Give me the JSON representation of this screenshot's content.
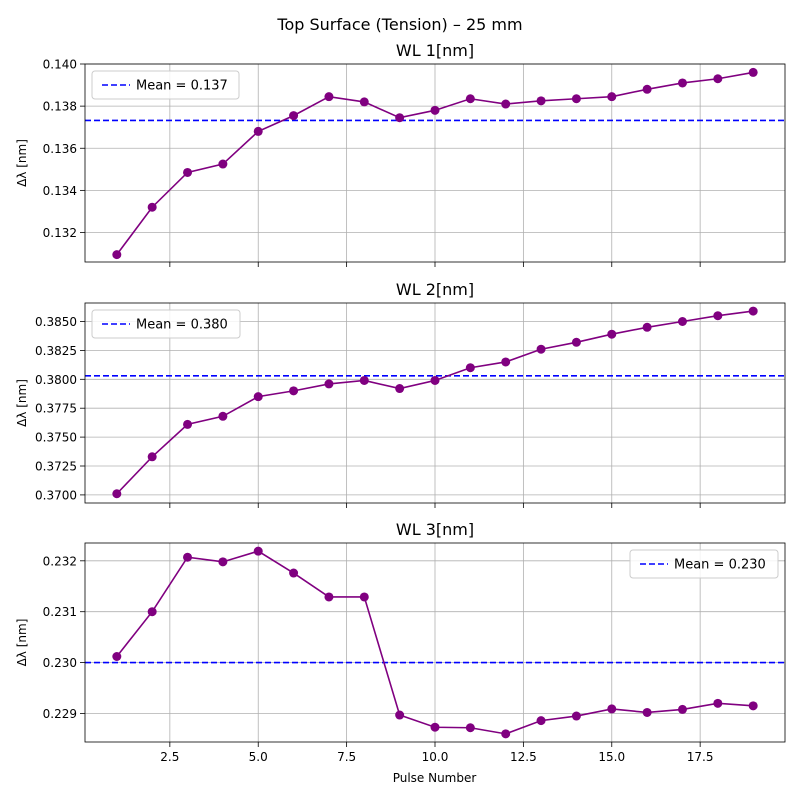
{
  "figure": {
    "suptitle": "Top Surface (Tension) – 25 mm",
    "xlabel": "Pulse Number"
  },
  "colors": {
    "series": "#800080",
    "mean_line": "#0000ff",
    "grid": "#b0b0b0",
    "legend_border": "#cccccc"
  },
  "chart_data": [
    {
      "type": "line",
      "title": "WL 1[nm]",
      "ylabel": "Δλ [nm]",
      "xlim": [
        0.1,
        19.9
      ],
      "ylim": [
        0.1306,
        0.14
      ],
      "xticks": [
        2.5,
        5.0,
        7.5,
        10.0,
        12.5,
        15.0,
        17.5
      ],
      "xtick_labels_visible": false,
      "yticks": [
        0.132,
        0.134,
        0.136,
        0.138,
        0.14
      ],
      "ytick_labels": [
        "0.132",
        "0.134",
        "0.136",
        "0.138",
        "0.140"
      ],
      "grid": true,
      "x": [
        1,
        2,
        3,
        4,
        5,
        6,
        7,
        8,
        9,
        10,
        11,
        12,
        13,
        14,
        15,
        16,
        17,
        18,
        19
      ],
      "y": [
        0.13095,
        0.1332,
        0.13485,
        0.13525,
        0.1368,
        0.13755,
        0.13845,
        0.1382,
        0.13745,
        0.1378,
        0.13835,
        0.1381,
        0.13825,
        0.13835,
        0.13845,
        0.1388,
        0.1391,
        0.1393,
        0.1396
      ],
      "mean": {
        "value": 0.13732,
        "label": "Mean = 0.137"
      },
      "legend_position": "upper-left"
    },
    {
      "type": "line",
      "title": "WL 2[nm]",
      "ylabel": "Δλ [nm]",
      "xlim": [
        0.1,
        19.9
      ],
      "ylim": [
        0.3693,
        0.3866
      ],
      "xticks": [
        2.5,
        5.0,
        7.5,
        10.0,
        12.5,
        15.0,
        17.5
      ],
      "xtick_labels_visible": false,
      "yticks": [
        0.37,
        0.3725,
        0.375,
        0.3775,
        0.38,
        0.3825,
        0.385
      ],
      "ytick_labels": [
        "0.3700",
        "0.3725",
        "0.3750",
        "0.3775",
        "0.3800",
        "0.3825",
        "0.3850"
      ],
      "grid": true,
      "x": [
        1,
        2,
        3,
        4,
        5,
        6,
        7,
        8,
        9,
        10,
        11,
        12,
        13,
        14,
        15,
        16,
        17,
        18,
        19
      ],
      "y": [
        0.3701,
        0.3733,
        0.3761,
        0.3768,
        0.3785,
        0.379,
        0.3796,
        0.3799,
        0.3792,
        0.3799,
        0.381,
        0.3815,
        0.3826,
        0.3832,
        0.3839,
        0.3845,
        0.385,
        0.3855,
        0.3859
      ],
      "mean": {
        "value": 0.3803,
        "label": "Mean = 0.380"
      },
      "legend_position": "upper-left"
    },
    {
      "type": "line",
      "title": "WL 3[nm]",
      "ylabel": "Δλ [nm]",
      "xlim": [
        0.1,
        19.9
      ],
      "ylim": [
        0.22844,
        0.23235
      ],
      "xticks": [
        2.5,
        5.0,
        7.5,
        10.0,
        12.5,
        15.0,
        17.5
      ],
      "xtick_labels_visible": true,
      "xtick_labels": [
        "2.5",
        "5.0",
        "7.5",
        "10.0",
        "12.5",
        "15.0",
        "17.5"
      ],
      "yticks": [
        0.229,
        0.23,
        0.231,
        0.232
      ],
      "ytick_labels": [
        "0.229",
        "0.230",
        "0.231",
        "0.232"
      ],
      "grid": true,
      "x": [
        1,
        2,
        3,
        4,
        5,
        6,
        7,
        8,
        9,
        10,
        11,
        12,
        13,
        14,
        15,
        16,
        17,
        18,
        19
      ],
      "y": [
        0.23012,
        0.231,
        0.23207,
        0.23198,
        0.23219,
        0.23176,
        0.23129,
        0.23129,
        0.22897,
        0.22873,
        0.22872,
        0.2286,
        0.22886,
        0.22895,
        0.22909,
        0.22902,
        0.22908,
        0.2292,
        0.22915
      ],
      "mean": {
        "value": 0.23,
        "label": "Mean = 0.230"
      },
      "legend_position": "upper-right"
    }
  ]
}
